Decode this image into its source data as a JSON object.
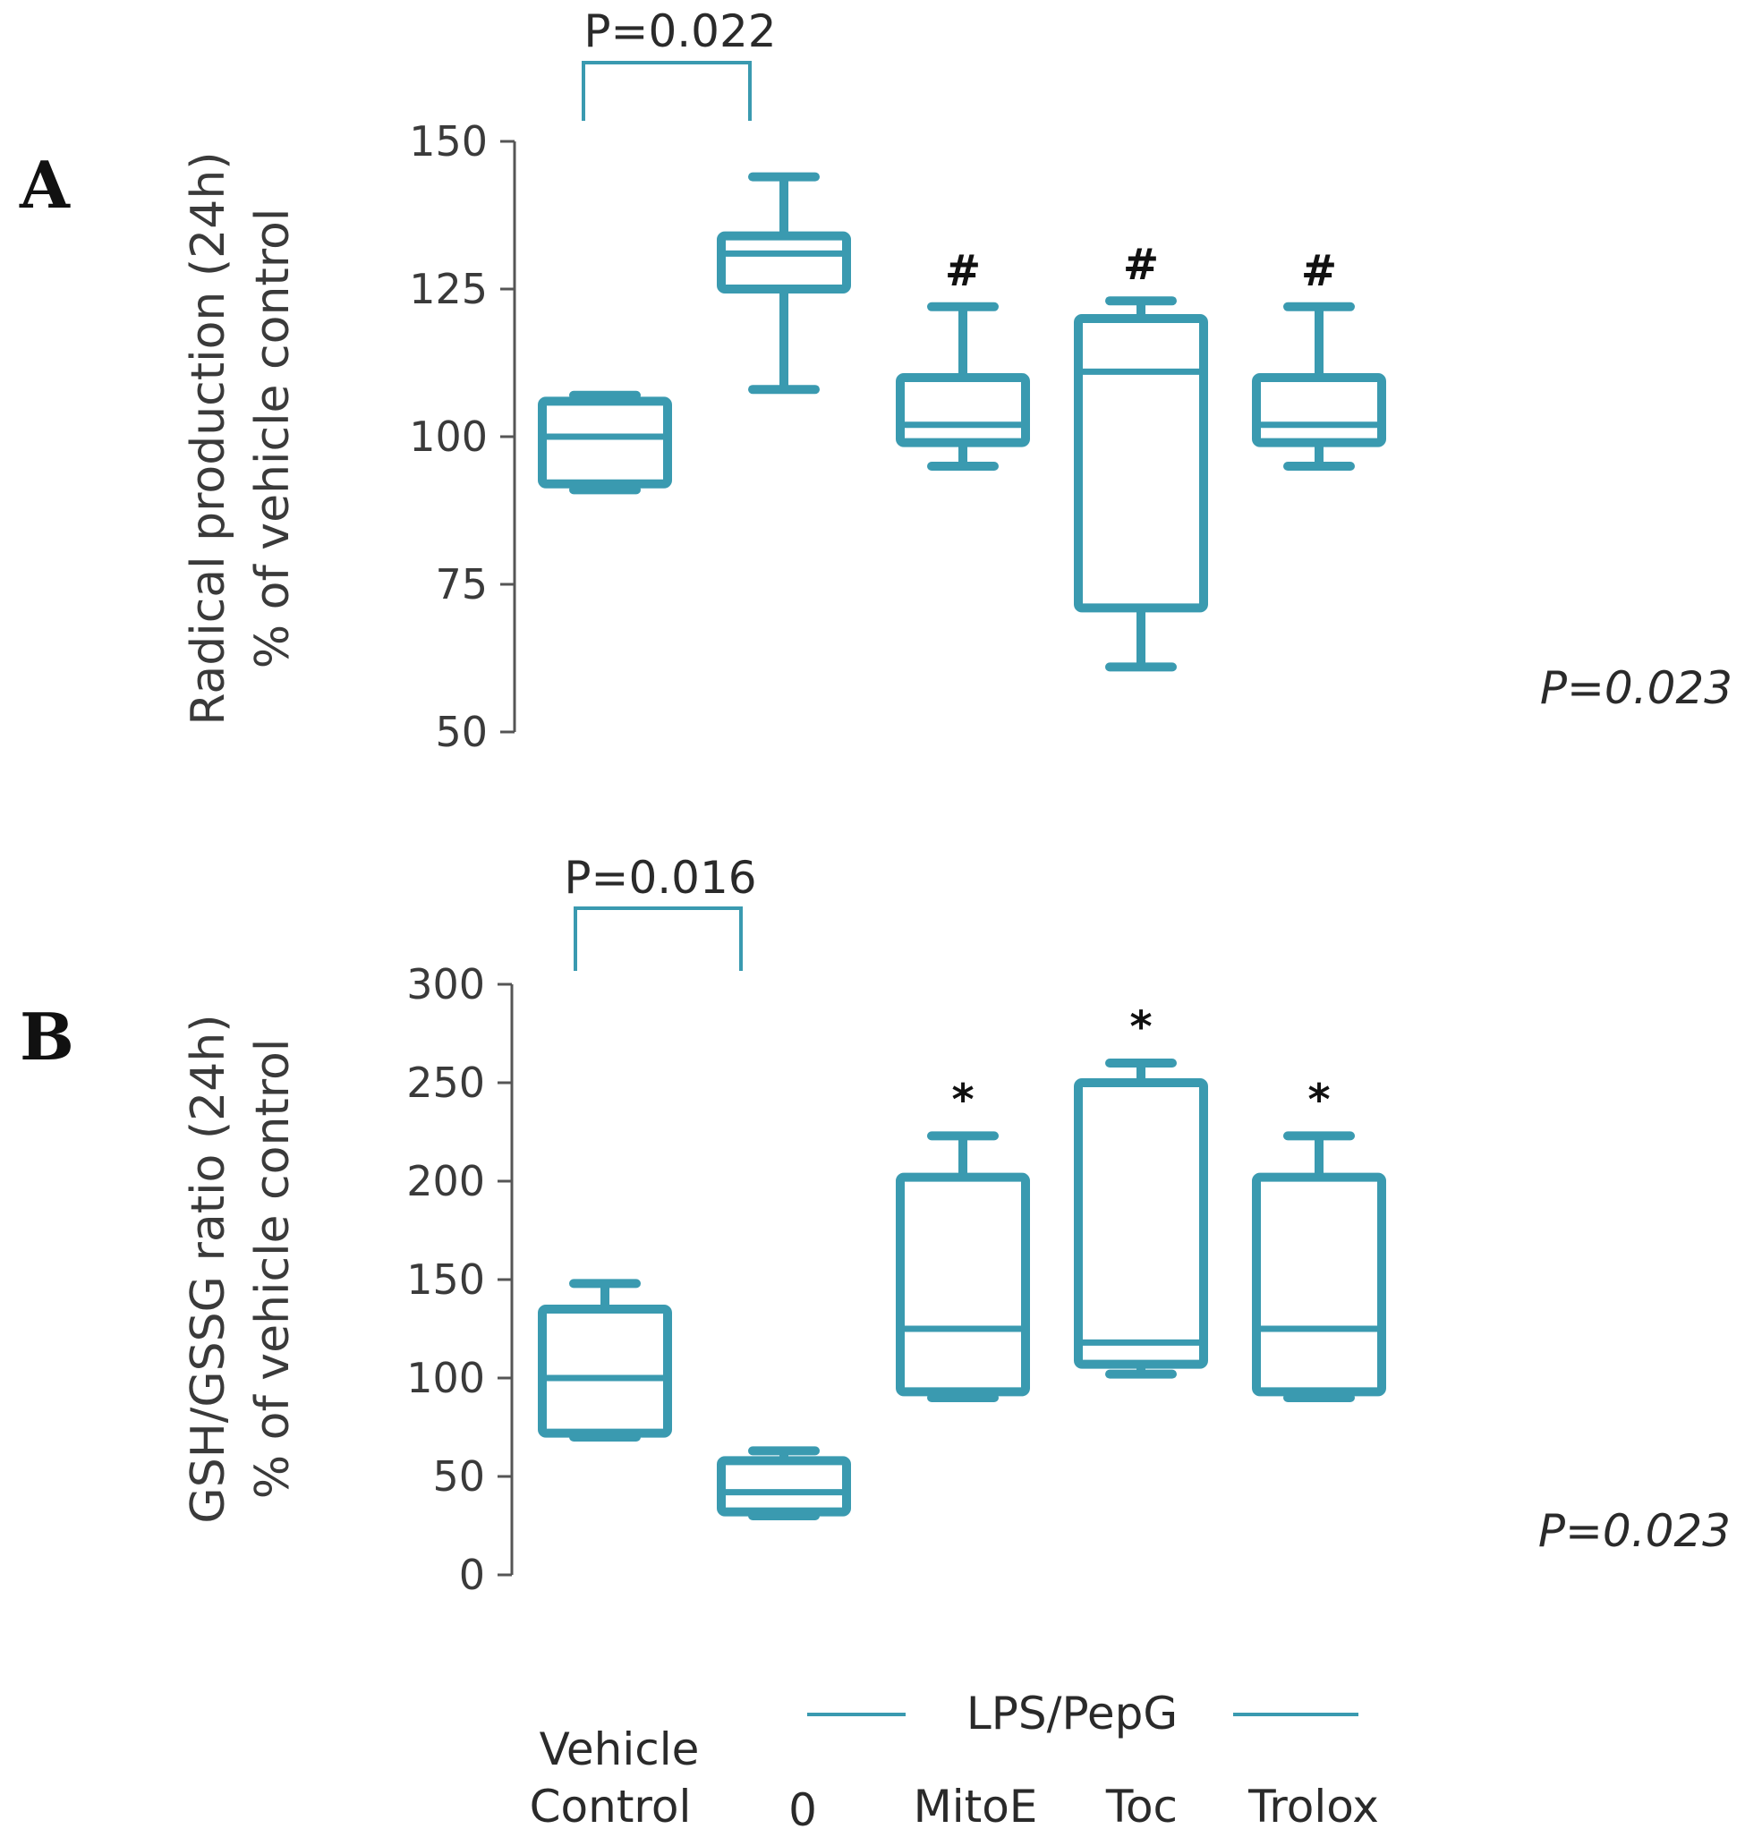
{
  "chart_data": [
    {
      "panel": "A",
      "type": "box",
      "ylabel_line1": "Radical production (24h)",
      "ylabel_line2": "% of vehicle control",
      "yticks": [
        "150",
        "125",
        "100",
        "75",
        "50"
      ],
      "ylim": [
        50,
        150
      ],
      "bracket_label": "P=0.022",
      "overall_p": "P=0.023",
      "boxes": [
        {
          "group": "Vehicle Control",
          "min": 91,
          "q1": 92,
          "median": 100,
          "q3": 106,
          "max": 107,
          "marker": ""
        },
        {
          "group": "0",
          "min": 108,
          "q1": 125,
          "median": 131,
          "q3": 134,
          "max": 144,
          "marker": ""
        },
        {
          "group": "MitoE",
          "min": 95,
          "q1": 99,
          "median": 102,
          "q3": 110,
          "max": 122,
          "marker": "#"
        },
        {
          "group": "Toc",
          "min": 61,
          "q1": 71,
          "median": 111,
          "q3": 120,
          "max": 123,
          "marker": "#"
        },
        {
          "group": "Trolox",
          "min": 95,
          "q1": 99,
          "median": 102,
          "q3": 110,
          "max": 122,
          "marker": "#"
        }
      ]
    },
    {
      "panel": "B",
      "type": "box",
      "ylabel_line1": "GSH/GSSG  ratio (24h)",
      "ylabel_line2": "% of vehicle control",
      "yticks": [
        "300",
        "250",
        "200",
        "150",
        "100",
        "50",
        "0"
      ],
      "ylim": [
        0,
        300
      ],
      "bracket_label": "P=0.016",
      "overall_p": "P=0.023",
      "boxes": [
        {
          "group": "Vehicle Control",
          "min": 70,
          "q1": 72,
          "median": 100,
          "q3": 135,
          "max": 148,
          "marker": ""
        },
        {
          "group": "0",
          "min": 30,
          "q1": 32,
          "median": 42,
          "q3": 58,
          "max": 63,
          "marker": ""
        },
        {
          "group": "MitoE",
          "min": 90,
          "q1": 93,
          "median": 125,
          "q3": 202,
          "max": 223,
          "marker": "*"
        },
        {
          "group": "Toc",
          "min": 102,
          "q1": 107,
          "median": 118,
          "q3": 250,
          "max": 260,
          "marker": "*"
        },
        {
          "group": "Trolox",
          "min": 90,
          "q1": 93,
          "median": 125,
          "q3": 202,
          "max": 223,
          "marker": "*"
        }
      ]
    }
  ],
  "colors": {
    "box": "#3a9ab0",
    "axis": "#555555"
  },
  "labels": {
    "vehicle_line1": "Vehicle",
    "vehicle_line2": "Control",
    "treatment_group": "LPS/PepG",
    "cat_0": "0",
    "cat_mitoe": "MitoE",
    "cat_toc": "Toc",
    "cat_trolox": "Trolox"
  }
}
